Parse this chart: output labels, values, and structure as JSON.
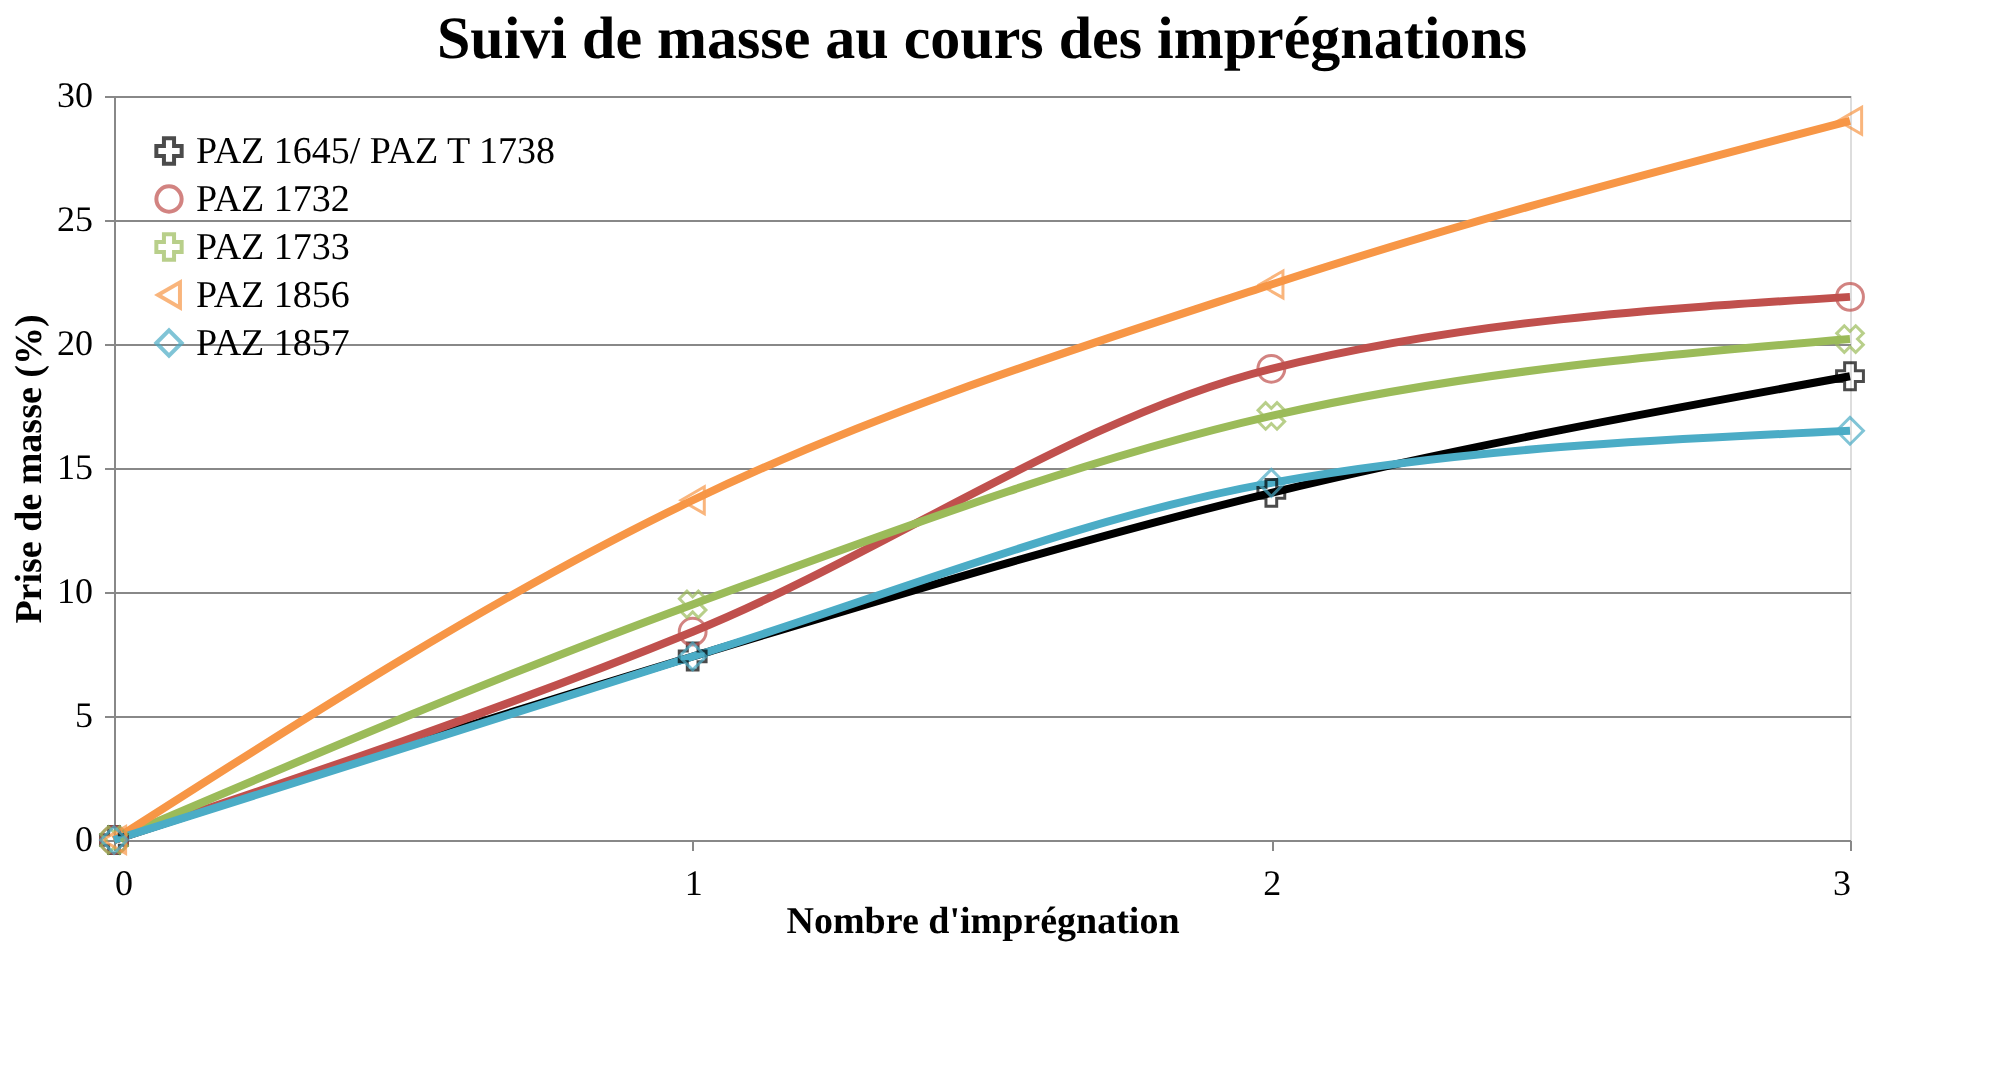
{
  "chart_data": {
    "type": "line",
    "title": "Suivi de masse au cours des  imprégnations",
    "xlabel": "Nombre d'imprégnation",
    "ylabel": "Prise de masse (%)",
    "x": [
      0,
      1,
      2,
      3
    ],
    "xlim": [
      0,
      3
    ],
    "xticks": [
      0,
      1,
      2,
      3
    ],
    "ylim": [
      0,
      30
    ],
    "yticks": [
      0,
      5,
      10,
      15,
      20,
      25,
      30
    ],
    "grid": "y",
    "legend": "top left",
    "line_style": "solid",
    "series": [
      {
        "name": "PAZ 1645/ PAZ T 1738",
        "color": "#000000",
        "marker": "cross",
        "values": [
          0,
          7.4,
          14.0,
          18.7
        ]
      },
      {
        "name": "PAZ 1732",
        "color": "#c0504d",
        "marker": "circle",
        "values": [
          0,
          8.4,
          19.0,
          21.9
        ]
      },
      {
        "name": "PAZ 1733",
        "color": "#9bbb59",
        "marker": "cross",
        "values": [
          0,
          9.5,
          17.1,
          20.2
        ]
      },
      {
        "name": "PAZ 1856",
        "color": "#f79646",
        "marker": "triangle",
        "values": [
          0,
          13.7,
          22.4,
          29.0
        ]
      },
      {
        "name": "PAZ 1857",
        "color": "#4bacc6",
        "marker": "diamond",
        "values": [
          0,
          7.4,
          14.4,
          16.5
        ]
      }
    ]
  }
}
